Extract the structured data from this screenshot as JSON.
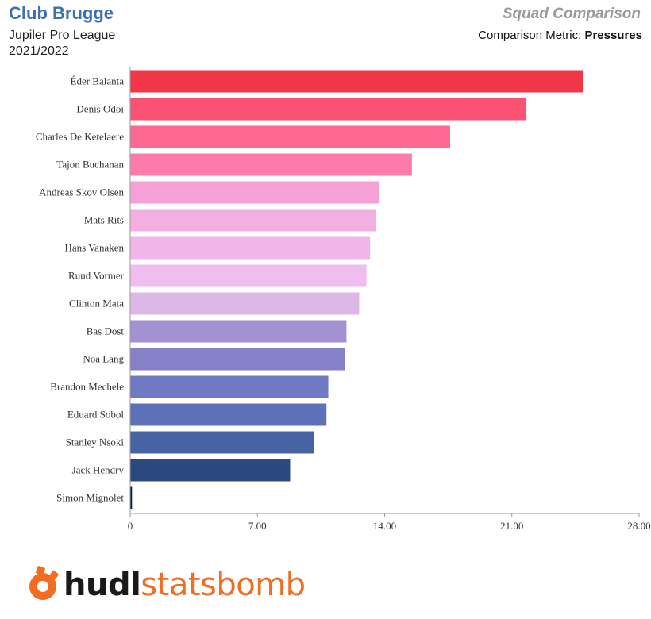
{
  "header": {
    "team": "Club Brugge",
    "league": "Jupiler Pro League",
    "season": "2021/2022",
    "heading": "Squad Comparison",
    "metric_label": "Comparison Metric:",
    "metric_value": "Pressures"
  },
  "logo": {
    "icon": "statsbomb-logo-icon",
    "part1": "hudl",
    "part2": "statsbomb"
  },
  "chart_data": {
    "type": "bar",
    "orientation": "horizontal",
    "categories": [
      "Éder Balanta",
      "Denis Odoi",
      "Charles De Ketelaere",
      "Tajon Buchanan",
      "Andreas Skov Olsen",
      "Mats Rits",
      "Hans Vanaken",
      "Ruud Vormer",
      "Clinton Mata",
      "Bas Dost",
      "Noa Lang",
      "Brandon Mechele",
      "Eduard Sobol",
      "Stanley Nsoki",
      "Jack Hendry",
      "Simon Mignolet"
    ],
    "values": [
      24.9,
      21.8,
      17.6,
      15.5,
      13.7,
      13.5,
      13.2,
      13.0,
      12.6,
      11.9,
      11.8,
      10.9,
      10.8,
      10.1,
      8.8,
      0.1
    ],
    "colors": [
      "#f23547",
      "#f95273",
      "#fc6890",
      "#fd7ba9",
      "#f6a1d5",
      "#f3afe2",
      "#f1b5e9",
      "#efbdee",
      "#dcb8e6",
      "#a391d2",
      "#8680c8",
      "#6e7ac4",
      "#5e70b8",
      "#4863a3",
      "#2b497f",
      "#0e1a4d"
    ],
    "xlim": [
      0,
      28
    ],
    "xticks": [
      "0",
      "7.00",
      "14.00",
      "21.00",
      "28.00"
    ],
    "xtick_values": [
      0,
      7,
      14,
      21,
      28
    ],
    "grid": false
  }
}
